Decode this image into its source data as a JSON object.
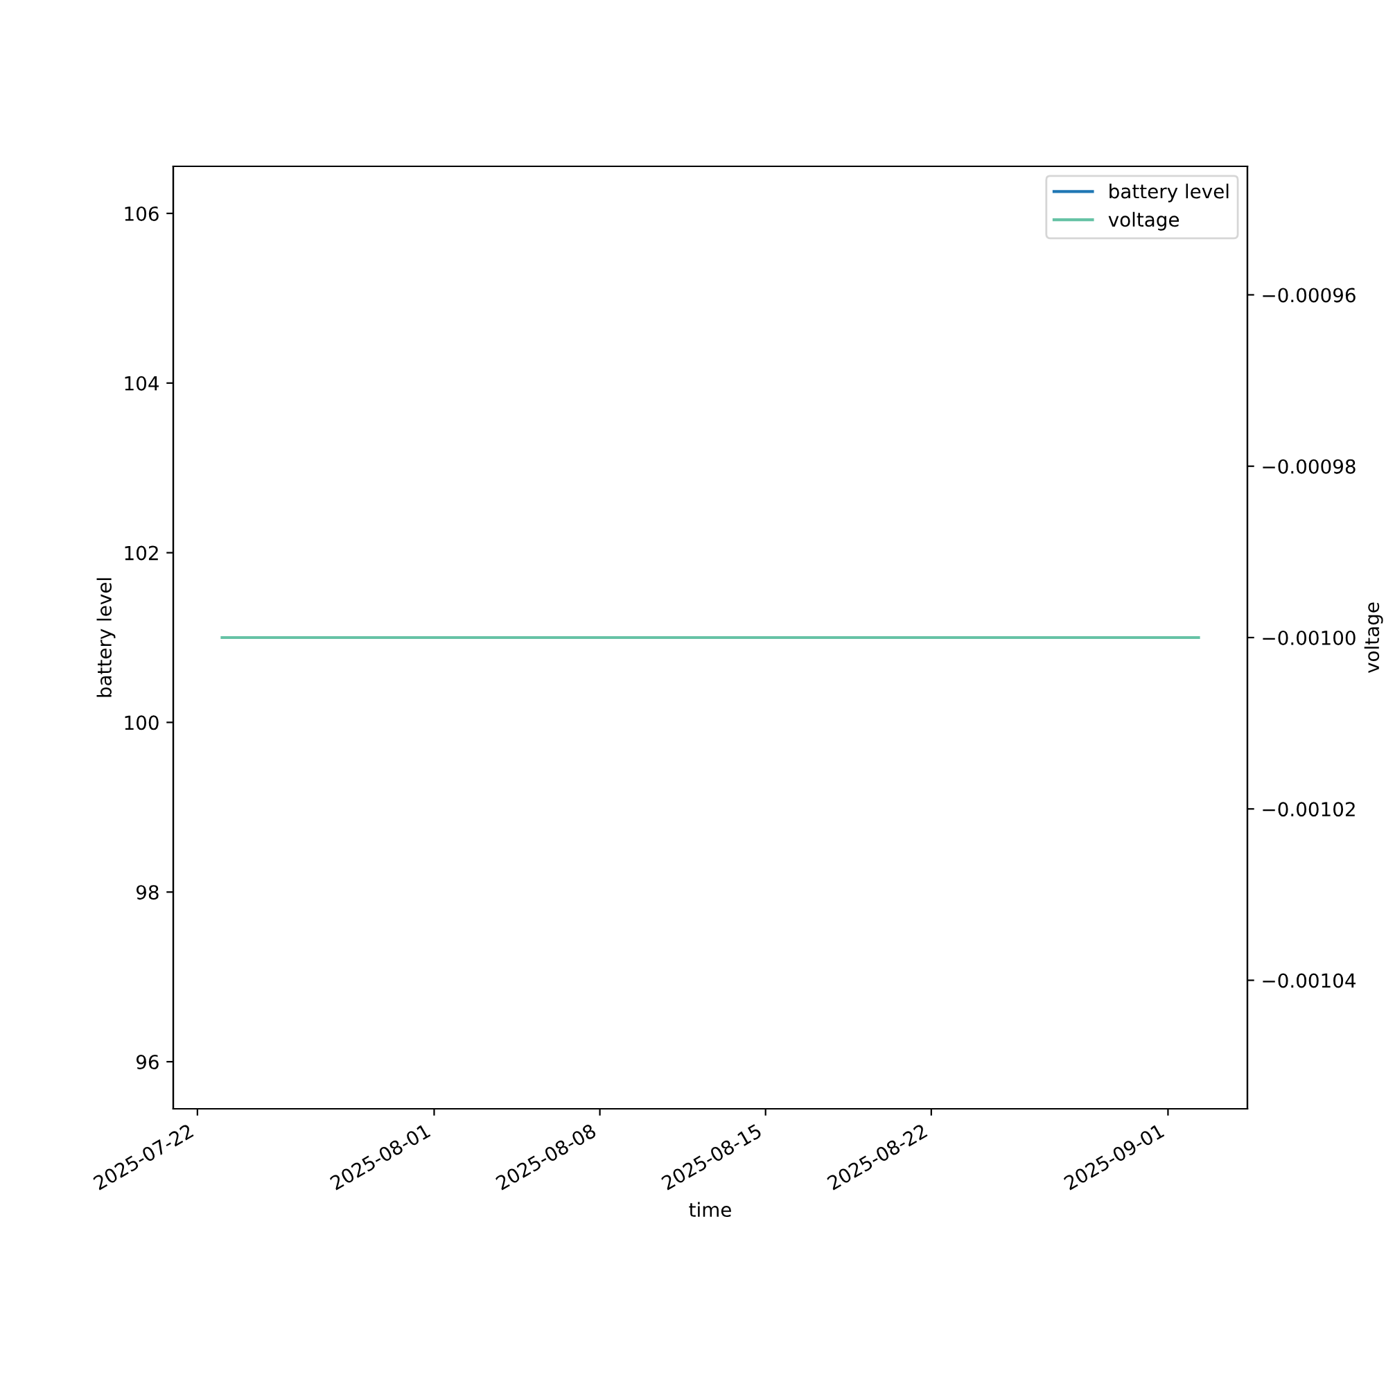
{
  "chart_data": {
    "type": "line",
    "xlabel": "time",
    "ylabel": "battery level",
    "y2label": "voltage",
    "x": [
      "2025-07-23T01:00",
      "2025-09-02T07:00"
    ],
    "series": [
      {
        "name": "battery level",
        "color": "#1f77b4",
        "values": [
          null,
          null
        ]
      },
      {
        "name": "voltage",
        "color": "#66c2a5",
        "values": [
          -0.001,
          -0.001
        ],
        "axis": "y2"
      }
    ],
    "xlim": [
      "2025-07-20T23:30",
      "2025-09-04T08:30"
    ],
    "xticks": [
      {
        "value": "2025-07-22",
        "label": "2025-07-22"
      },
      {
        "value": "2025-08-01",
        "label": "2025-08-01"
      },
      {
        "value": "2025-08-08",
        "label": "2025-08-08"
      },
      {
        "value": "2025-08-15",
        "label": "2025-08-15"
      },
      {
        "value": "2025-08-22",
        "label": "2025-08-22"
      },
      {
        "value": "2025-09-01",
        "label": "2025-09-01"
      }
    ],
    "ylim": [
      95.445,
      106.555
    ],
    "yticks": [
      96,
      98,
      100,
      102,
      104,
      106
    ],
    "y2lim": [
      -0.001055,
      -0.000945
    ],
    "y2ticks": [
      {
        "value": -0.00104,
        "label": "−0.00104"
      },
      {
        "value": -0.00102,
        "label": "−0.00102"
      },
      {
        "value": -0.001,
        "label": "−0.00100"
      },
      {
        "value": -0.00098,
        "label": "−0.00098"
      },
      {
        "value": -0.00096,
        "label": "−0.00096"
      }
    ],
    "legend": "upper right",
    "grid": false,
    "line_style": "solid",
    "marker": "none"
  }
}
